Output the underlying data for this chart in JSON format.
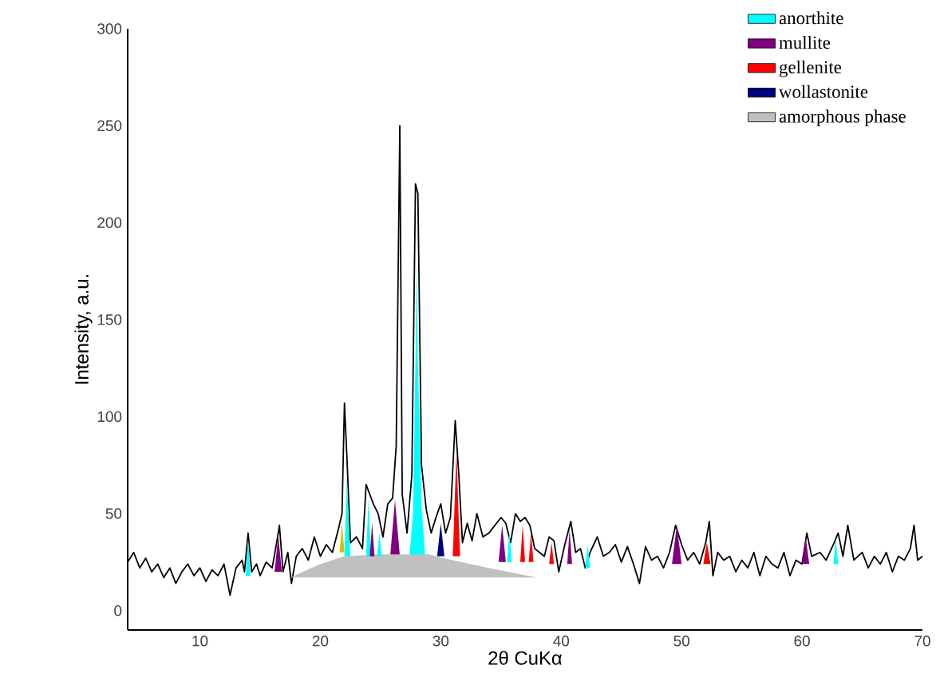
{
  "chart_data": {
    "type": "line",
    "xlabel": "2θ CuKα",
    "ylabel": "Intensity, a.u.",
    "xlim": [
      4,
      70
    ],
    "ylim": [
      -10,
      300
    ],
    "xticks": [
      10,
      20,
      30,
      40,
      50,
      60,
      70
    ],
    "yticks": [
      0,
      50,
      100,
      150,
      200,
      250,
      300
    ],
    "legend": "top right",
    "marker": "none",
    "series": [
      {
        "color": "#000000",
        "x": [
          4,
          4.5,
          5,
          5.5,
          6,
          6.5,
          7,
          7.5,
          8,
          8.5,
          9,
          9.5,
          10,
          10.5,
          11,
          11.5,
          12,
          12.5,
          13,
          13.5,
          13.7,
          14,
          14.3,
          14.7,
          15,
          15.5,
          16,
          16.4,
          16.6,
          16.9,
          17.3,
          17.6,
          18,
          18.5,
          19,
          19.5,
          20,
          20.5,
          21,
          21.5,
          21.8,
          22,
          22.2,
          22.5,
          23,
          23.5,
          23.8,
          24.1,
          24.4,
          24.8,
          25.2,
          25.6,
          26,
          26.3,
          26.6,
          26.8,
          27.2,
          27.6,
          27.9,
          28.1,
          28.4,
          28.8,
          29.2,
          29.6,
          30,
          30.4,
          30.8,
          31.2,
          31.5,
          31.8,
          32.2,
          32.6,
          33,
          33.5,
          34,
          34.5,
          35,
          35.4,
          35.8,
          36.2,
          36.6,
          37,
          37.4,
          37.8,
          38.2,
          38.6,
          39,
          39.4,
          39.8,
          40.3,
          40.8,
          41.2,
          41.6,
          42,
          42.4,
          43,
          43.5,
          44,
          44.5,
          45,
          45.5,
          46,
          46.5,
          47,
          47.5,
          48,
          48.5,
          49,
          49.5,
          50,
          50.5,
          51,
          51.5,
          52,
          52.3,
          52.6,
          53,
          53.5,
          54,
          54.5,
          55,
          55.5,
          56,
          56.5,
          57,
          57.5,
          58,
          58.5,
          59,
          59.5,
          60,
          60.4,
          60.8,
          61.5,
          62,
          62.6,
          63,
          63.4,
          63.8,
          64.3,
          65,
          65.5,
          66,
          66.5,
          67,
          67.5,
          68,
          68.5,
          69,
          69.3,
          69.6,
          70
        ],
        "values": [
          25,
          30,
          22,
          27,
          20,
          24,
          17,
          22,
          14,
          20,
          24,
          18,
          22,
          15,
          21,
          18,
          24,
          8,
          22,
          26,
          20,
          40,
          20,
          24,
          18,
          25,
          22,
          36,
          44,
          20,
          30,
          14,
          28,
          32,
          26,
          38,
          28,
          34,
          30,
          42,
          50,
          107,
          80,
          35,
          38,
          32,
          65,
          60,
          55,
          50,
          38,
          55,
          58,
          85,
          250,
          60,
          40,
          70,
          220,
          215,
          75,
          52,
          40,
          48,
          55,
          40,
          48,
          98,
          70,
          35,
          45,
          36,
          50,
          38,
          40,
          44,
          48,
          45,
          35,
          50,
          46,
          48,
          44,
          32,
          30,
          28,
          38,
          36,
          20,
          34,
          46,
          30,
          32,
          22,
          30,
          38,
          28,
          30,
          34,
          25,
          33,
          24,
          14,
          33,
          26,
          28,
          22,
          30,
          44,
          34,
          26,
          30,
          24,
          35,
          46,
          18,
          30,
          26,
          28,
          20,
          26,
          22,
          30,
          18,
          28,
          24,
          22,
          30,
          18,
          26,
          24,
          40,
          28,
          30,
          26,
          34,
          40,
          28,
          44,
          26,
          30,
          22,
          28,
          24,
          30,
          20,
          28,
          26,
          32,
          44,
          26,
          28
        ]
      },
      {
        "type": "area",
        "name": "anorthite",
        "color": "#00ffff",
        "x": [
          27.4,
          27.7,
          27.9,
          28.0,
          28.1,
          28.4,
          28.7
        ],
        "values": [
          28,
          50,
          130,
          178,
          130,
          55,
          28
        ]
      },
      {
        "type": "area",
        "name": "mullite",
        "color": "#800080",
        "x": [
          25.8,
          26.2,
          26.6
        ],
        "values": [
          28,
          57,
          28
        ]
      },
      {
        "type": "area",
        "name": "gellenite",
        "color": "#ff0000",
        "x": [
          31.0,
          31.3,
          31.6
        ],
        "values": [
          28,
          82,
          28
        ]
      },
      {
        "type": "area",
        "name": "wollastonite",
        "color": "#000080",
        "x": [
          29.7,
          30.0,
          30.3
        ],
        "values": [
          28,
          45,
          28
        ]
      },
      {
        "type": "area",
        "name": "amorphous phase",
        "color": "#c0c0c0",
        "x": [
          17.5,
          20,
          22,
          25,
          29,
          31,
          34,
          38
        ],
        "values": [
          17,
          24,
          28,
          29,
          29,
          26,
          22,
          17
        ]
      },
      {
        "type": "area",
        "color": "#00ffff",
        "x": [
          13.8,
          14.0,
          14.2
        ],
        "values": [
          18,
          37,
          18
        ]
      },
      {
        "type": "area",
        "color": "#00ffff",
        "x": [
          22.0,
          22.2,
          22.5
        ],
        "values": [
          28,
          68,
          28
        ]
      },
      {
        "type": "area",
        "color": "#00ffff",
        "x": [
          23.8,
          24.0,
          24.2
        ],
        "values": [
          28,
          58,
          28
        ]
      },
      {
        "type": "area",
        "color": "#00ffff",
        "x": [
          24.7,
          24.9,
          25.1
        ],
        "values": [
          28,
          40,
          28
        ]
      },
      {
        "type": "area",
        "color": "#00ffff",
        "x": [
          35.5,
          35.7,
          35.9
        ],
        "values": [
          25,
          41,
          25
        ]
      },
      {
        "type": "area",
        "color": "#00ffff",
        "x": [
          42.0,
          42.2,
          42.4
        ],
        "values": [
          22,
          34,
          22
        ]
      },
      {
        "type": "area",
        "color": "#00ffff",
        "x": [
          62.6,
          62.8,
          63.0
        ],
        "values": [
          24,
          37,
          24
        ]
      },
      {
        "type": "area",
        "color": "#800080",
        "x": [
          16.2,
          16.5,
          16.8
        ],
        "values": [
          20,
          39,
          20
        ]
      },
      {
        "type": "area",
        "color": "#800080",
        "x": [
          24.1,
          24.3,
          24.5
        ],
        "values": [
          28,
          45,
          28
        ]
      },
      {
        "type": "area",
        "color": "#800080",
        "x": [
          34.8,
          35.1,
          35.4
        ],
        "values": [
          25,
          44,
          25
        ]
      },
      {
        "type": "area",
        "color": "#800080",
        "x": [
          40.5,
          40.7,
          40.9
        ],
        "values": [
          24,
          42,
          24
        ]
      },
      {
        "type": "area",
        "color": "#800080",
        "x": [
          49.2,
          49.6,
          50.0
        ],
        "values": [
          24,
          44,
          24
        ]
      },
      {
        "type": "area",
        "color": "#800080",
        "x": [
          60.0,
          60.3,
          60.6
        ],
        "values": [
          24,
          38,
          24
        ]
      },
      {
        "type": "area",
        "color": "#ff0000",
        "x": [
          36.6,
          36.8,
          37.0
        ],
        "values": [
          25,
          44,
          25
        ]
      },
      {
        "type": "area",
        "color": "#ff0000",
        "x": [
          37.3,
          37.5,
          37.7
        ],
        "values": [
          25,
          40,
          25
        ]
      },
      {
        "type": "area",
        "color": "#ff0000",
        "x": [
          39.0,
          39.2,
          39.4
        ],
        "values": [
          24,
          35,
          24
        ]
      },
      {
        "type": "area",
        "color": "#ff0000",
        "x": [
          51.8,
          52.1,
          52.4
        ],
        "values": [
          24,
          35,
          24
        ]
      },
      {
        "type": "area",
        "color": "#d4c000",
        "x": [
          21.6,
          21.8,
          22.0
        ],
        "values": [
          30,
          45,
          30
        ]
      }
    ]
  }
}
